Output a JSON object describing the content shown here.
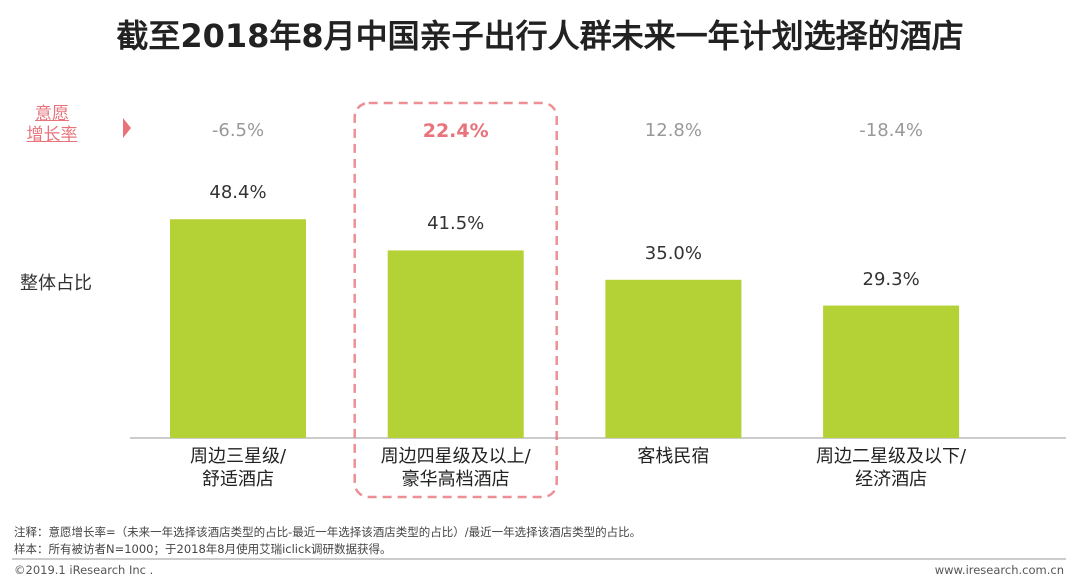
{
  "chart_data": {
    "type": "bar",
    "title": "截至2018年8月中国亲子出行人群未来一年计划选择的酒店",
    "categories": [
      "周边三星级/\n舒适酒店",
      "周边四星级及以上/\n豪华高档酒店",
      "客栈民宿",
      "周边二星级及以下/\n经济酒店"
    ],
    "values_label": "整体占比",
    "values": [
      48.4,
      41.5,
      35.0,
      29.3
    ],
    "value_labels": [
      "48.4%",
      "41.5%",
      "35.0%",
      "29.3%"
    ],
    "color": "#b4d136",
    "growth_label": "意愿\n增长率",
    "growth_values": [
      -6.5,
      22.4,
      12.8,
      -18.4
    ],
    "growth_value_labels": [
      "-6.5%",
      "22.4%",
      "12.8%",
      "-18.4%"
    ],
    "highlight": 1,
    "highlight_color": "#e8737a"
  },
  "notes": [
    "注释：意愿增长率=（未来一年选择该酒店类型的占比-最近一年选择该酒店类型的占比）/最近一年选择该酒店类型的占比。",
    "样本：所有被访者N=1000；于2018年8月使用艾瑞iclick调研数据获得。"
  ],
  "footer": {
    "left": "©2019.1 iResearch Inc .",
    "right": "www.iresearch.com.cn"
  }
}
